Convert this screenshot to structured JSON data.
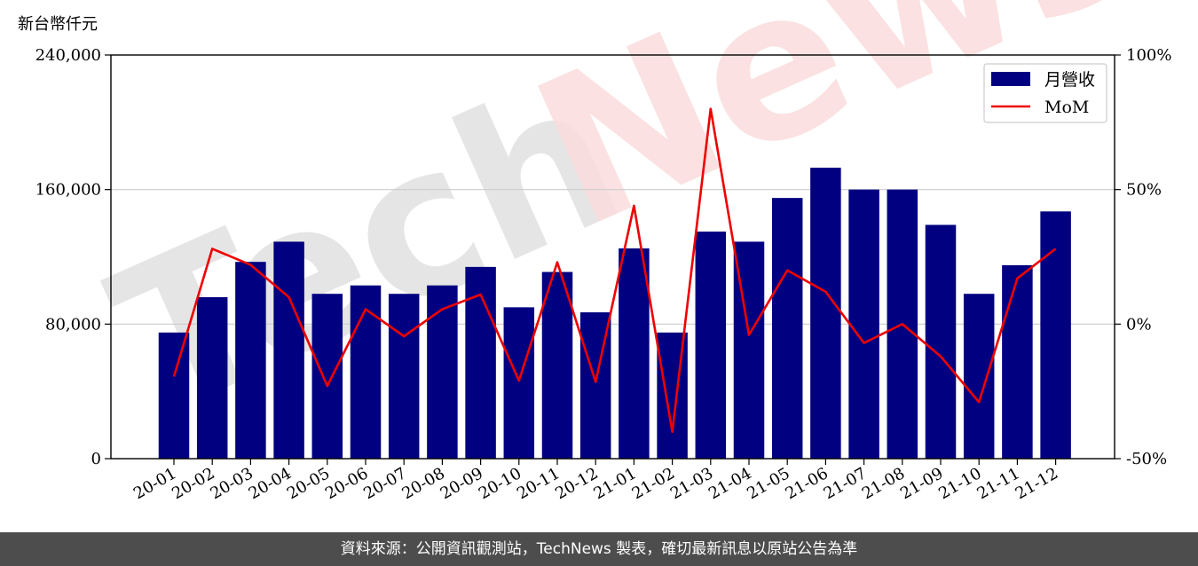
{
  "footer": {
    "source_note": "資料來源：公開資訊觀測站，TechNews 製表，確切最新訊息以原站公告為準"
  },
  "watermark": {
    "text": "TechNews",
    "colors": [
      "#e0e0e0",
      "#fadcdc"
    ]
  },
  "chart_data": {
    "type": "bar",
    "title": "",
    "y_unit_label": "新台幣仟元",
    "categories": [
      "20-01",
      "20-02",
      "20-03",
      "20-04",
      "20-05",
      "20-06",
      "20-07",
      "20-08",
      "20-09",
      "20-10",
      "20-11",
      "20-12",
      "21-01",
      "21-02",
      "21-03",
      "21-04",
      "21-05",
      "21-06",
      "21-07",
      "21-08",
      "21-09",
      "21-10",
      "21-11",
      "21-12"
    ],
    "series": [
      {
        "name": "月營收",
        "type": "bar",
        "axis": "left",
        "color": "#000080",
        "values": [
          75000,
          96000,
          117000,
          129000,
          98000,
          103000,
          98000,
          103000,
          114000,
          90000,
          111000,
          87000,
          125000,
          75000,
          135000,
          129000,
          155000,
          173000,
          160000,
          160000,
          139000,
          98000,
          115000,
          147000
        ]
      },
      {
        "name": "MoM",
        "type": "line",
        "axis": "right",
        "color": "#ee0000",
        "values": [
          -0.195,
          0.28,
          0.22,
          0.1,
          -0.23,
          0.055,
          -0.045,
          0.055,
          0.11,
          -0.21,
          0.23,
          -0.215,
          0.44,
          -0.4,
          0.8,
          -0.04,
          0.2,
          0.12,
          -0.07,
          0.0,
          -0.12,
          -0.29,
          0.17,
          0.28
        ]
      }
    ],
    "y_left": {
      "min": 0,
      "max": 240000,
      "ticks": [
        0,
        80000,
        160000,
        240000
      ],
      "tick_labels": [
        "0",
        "80,000",
        "160,000",
        "240,000"
      ]
    },
    "y_right": {
      "min": -0.5,
      "max": 1.0,
      "ticks": [
        -0.5,
        0,
        0.5,
        1.0
      ],
      "tick_labels": [
        "-50%",
        "0%",
        "50%",
        "100%"
      ]
    },
    "grid": "horizontal",
    "grid_color": "#cccccc",
    "legend": {
      "position": "top-right",
      "entries": [
        "月營收",
        "MoM"
      ]
    }
  }
}
